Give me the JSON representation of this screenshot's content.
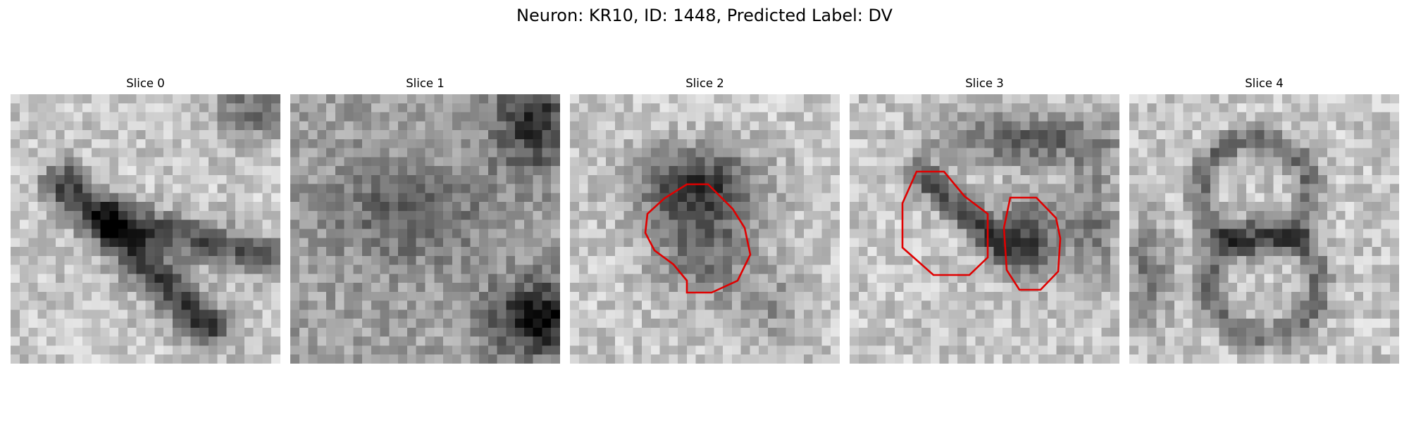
{
  "figure": {
    "title": "Neuron: KR10, ID: 1448, Predicted Label: DV"
  },
  "slices": [
    {
      "title": "Slice 0",
      "pattern": "diagonal-band",
      "roi_count": 0
    },
    {
      "title": "Slice 1",
      "pattern": "diffuse-corners",
      "roi_count": 0
    },
    {
      "title": "Slice 2",
      "pattern": "central-blob",
      "roi_count": 1
    },
    {
      "title": "Slice 3",
      "pattern": "two-blobs",
      "roi_count": 2
    },
    {
      "title": "Slice 4",
      "pattern": "ring",
      "roi_count": 0
    }
  ],
  "style": {
    "roi_color": "#e00000",
    "colormap": "gray"
  }
}
